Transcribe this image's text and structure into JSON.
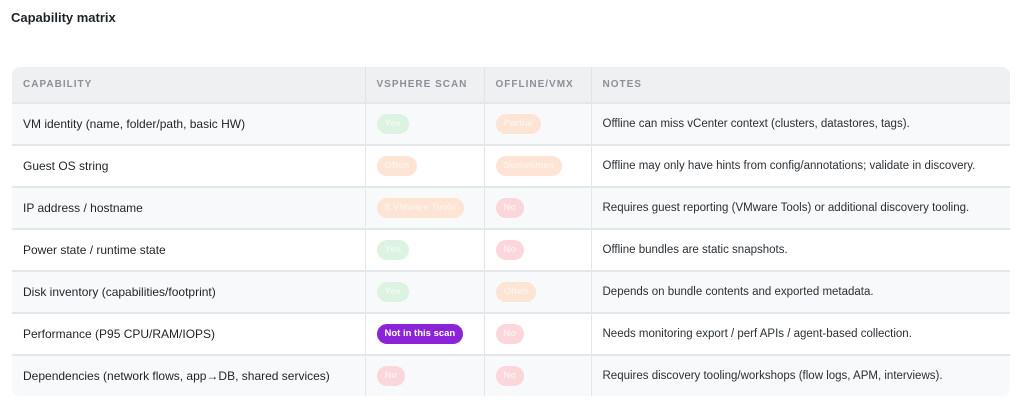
{
  "title": "Capability matrix",
  "columns": [
    "CAPABILITY",
    "VSPHERE SCAN",
    "OFFLINE/VMX",
    "NOTES"
  ],
  "rows": [
    {
      "capability": "VM identity (name, folder/path, basic HW)",
      "vsphere": {
        "label": "Yes",
        "kind": "yes"
      },
      "offline": {
        "label": "Partial",
        "kind": "partial"
      },
      "notes": "Offline can miss vCenter context (clusters, datastores, tags)."
    },
    {
      "capability": "Guest OS string",
      "vsphere": {
        "label": "Often",
        "kind": "partial"
      },
      "offline": {
        "label": "Sometimes",
        "kind": "partial"
      },
      "notes": "Offline may only have hints from config/annotations; validate in discovery."
    },
    {
      "capability": "IP address / hostname",
      "vsphere": {
        "label": "If VMware Tools",
        "kind": "partial"
      },
      "offline": {
        "label": "No",
        "kind": "no"
      },
      "notes": "Requires guest reporting (VMware Tools) or additional discovery tooling."
    },
    {
      "capability": "Power state / runtime state",
      "vsphere": {
        "label": "Yes",
        "kind": "yes"
      },
      "offline": {
        "label": "No",
        "kind": "no"
      },
      "notes": "Offline bundles are static snapshots."
    },
    {
      "capability": "Disk inventory (capabilities/footprint)",
      "vsphere": {
        "label": "Yes",
        "kind": "yes"
      },
      "offline": {
        "label": "Often",
        "kind": "partial"
      },
      "notes": "Depends on bundle contents and exported metadata."
    },
    {
      "capability": "Performance (P95 CPU/RAM/IOPS)",
      "vsphere": {
        "label": "Not in this scan",
        "kind": "notscan"
      },
      "offline": {
        "label": "No",
        "kind": "no"
      },
      "notes": "Needs monitoring export / perf APIs / agent-based collection."
    },
    {
      "capability": "Dependencies (network flows, app→DB, shared services)",
      "vsphere": {
        "label": "No",
        "kind": "no"
      },
      "offline": {
        "label": "No",
        "kind": "no"
      },
      "notes": "Requires discovery tooling/workshops (flow logs, APM, interviews)."
    }
  ]
}
